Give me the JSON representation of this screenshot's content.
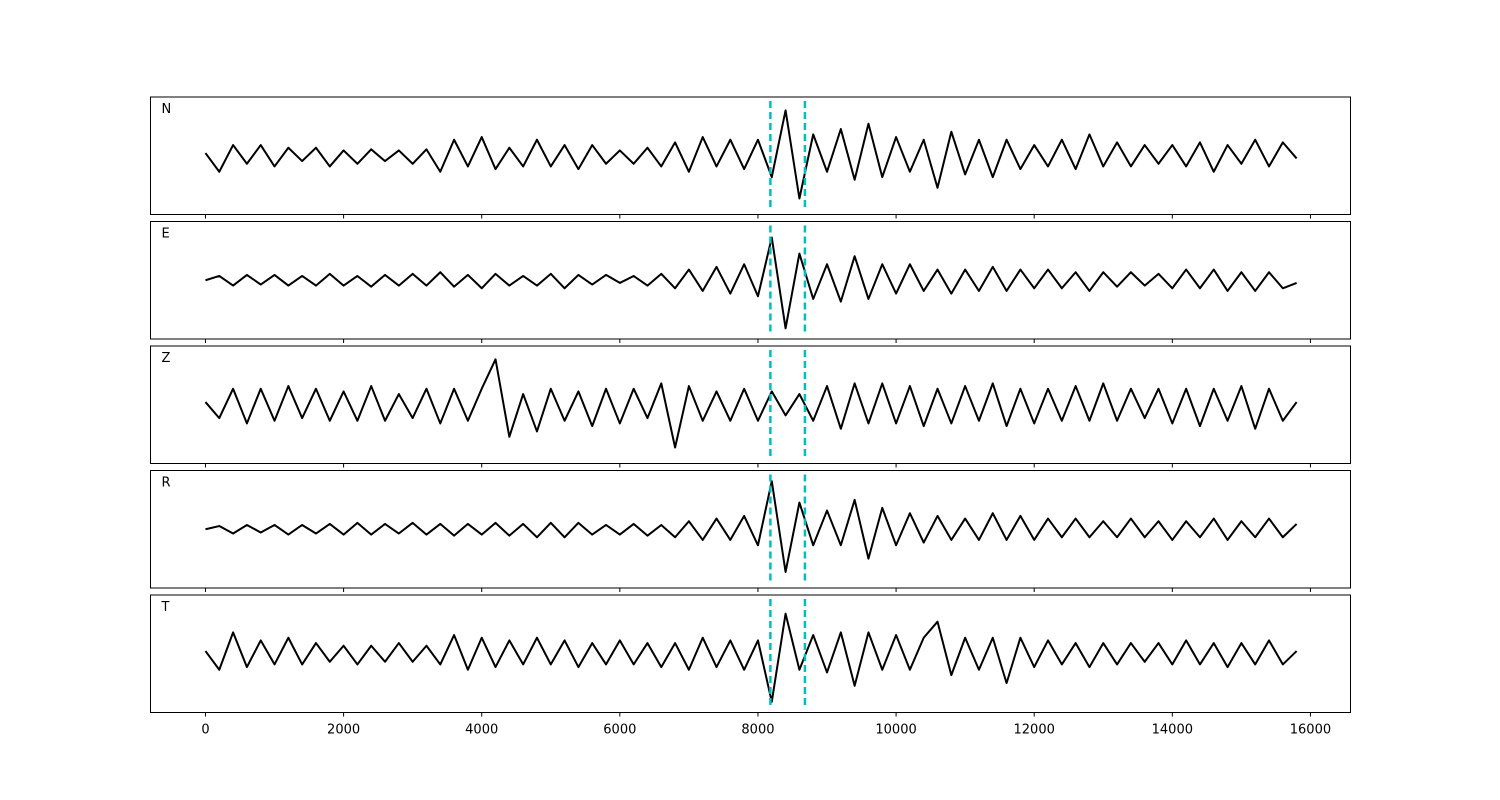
{
  "chart_data": {
    "type": "line",
    "subplots": true,
    "x": [
      0,
      200,
      400,
      600,
      800,
      1000,
      1200,
      1400,
      1600,
      1800,
      2000,
      2200,
      2400,
      2600,
      2800,
      3000,
      3200,
      3400,
      3600,
      3800,
      4000,
      4200,
      4400,
      4600,
      4800,
      5000,
      5200,
      5400,
      5600,
      5800,
      6000,
      6200,
      6400,
      6600,
      6800,
      7000,
      7200,
      7400,
      7600,
      7800,
      8000,
      8200,
      8400,
      8600,
      8800,
      9000,
      9200,
      9400,
      9600,
      9800,
      10000,
      10200,
      10400,
      10600,
      10800,
      11000,
      11200,
      11400,
      11600,
      11800,
      12000,
      12200,
      12400,
      12600,
      12800,
      13000,
      13200,
      13400,
      13600,
      13800,
      14000,
      14200,
      14400,
      14600,
      14800,
      15000,
      15200,
      15400,
      15600,
      15800
    ],
    "series": [
      {
        "name": "N",
        "color": "#000000",
        "values": [
          0.05,
          -0.3,
          0.2,
          -0.15,
          0.2,
          -0.2,
          0.15,
          -0.1,
          0.15,
          -0.2,
          0.1,
          -0.15,
          0.12,
          -0.1,
          0.1,
          -0.15,
          0.12,
          -0.3,
          0.3,
          -0.2,
          0.35,
          -0.25,
          0.15,
          -0.2,
          0.3,
          -0.2,
          0.2,
          -0.25,
          0.2,
          -0.15,
          0.1,
          -0.15,
          0.15,
          -0.2,
          0.25,
          -0.3,
          0.35,
          -0.2,
          0.3,
          -0.25,
          0.3,
          -0.4,
          0.85,
          -0.8,
          0.4,
          -0.3,
          0.5,
          -0.45,
          0.6,
          -0.4,
          0.35,
          -0.3,
          0.3,
          -0.6,
          0.45,
          -0.35,
          0.3,
          -0.4,
          0.3,
          -0.25,
          0.2,
          -0.2,
          0.3,
          -0.25,
          0.4,
          -0.2,
          0.25,
          -0.2,
          0.2,
          -0.15,
          0.2,
          -0.2,
          0.25,
          -0.3,
          0.2,
          -0.15,
          0.3,
          -0.2,
          0.25,
          -0.05
        ]
      },
      {
        "name": "E",
        "color": "#000000",
        "values": [
          0,
          0.08,
          -0.1,
          0.1,
          -0.08,
          0.1,
          -0.1,
          0.08,
          -0.1,
          0.12,
          -0.1,
          0.08,
          -0.12,
          0.1,
          -0.1,
          0.12,
          -0.1,
          0.15,
          -0.12,
          0.1,
          -0.15,
          0.12,
          -0.1,
          0.08,
          -0.1,
          0.12,
          -0.15,
          0.1,
          -0.08,
          0.1,
          -0.05,
          0.08,
          -0.1,
          0.12,
          -0.15,
          0.2,
          -0.2,
          0.25,
          -0.25,
          0.3,
          -0.3,
          0.8,
          -0.9,
          0.5,
          -0.35,
          0.3,
          -0.4,
          0.45,
          -0.35,
          0.3,
          -0.25,
          0.3,
          -0.2,
          0.2,
          -0.25,
          0.2,
          -0.2,
          0.25,
          -0.2,
          0.2,
          -0.15,
          0.2,
          -0.15,
          0.15,
          -0.2,
          0.15,
          -0.12,
          0.15,
          -0.1,
          0.12,
          -0.15,
          0.2,
          -0.15,
          0.2,
          -0.2,
          0.15,
          -0.2,
          0.15,
          -0.15,
          -0.05
        ]
      },
      {
        "name": "Z",
        "color": "#000000",
        "values": [
          0.05,
          -0.25,
          0.3,
          -0.35,
          0.3,
          -0.3,
          0.35,
          -0.25,
          0.3,
          -0.3,
          0.25,
          -0.3,
          0.35,
          -0.3,
          0.2,
          -0.25,
          0.3,
          -0.35,
          0.3,
          -0.3,
          0.3,
          0.85,
          -0.6,
          0.2,
          -0.5,
          0.3,
          -0.3,
          0.25,
          -0.4,
          0.3,
          -0.35,
          0.3,
          -0.25,
          0.4,
          -0.8,
          0.35,
          -0.3,
          0.25,
          -0.3,
          0.3,
          -0.3,
          0.25,
          -0.2,
          0.2,
          -0.3,
          0.35,
          -0.45,
          0.4,
          -0.35,
          0.4,
          -0.35,
          0.35,
          -0.4,
          0.3,
          -0.35,
          0.35,
          -0.3,
          0.4,
          -0.4,
          0.3,
          -0.35,
          0.3,
          -0.3,
          0.35,
          -0.3,
          0.4,
          -0.3,
          0.3,
          -0.25,
          0.3,
          -0.35,
          0.3,
          -0.4,
          0.3,
          -0.3,
          0.35,
          -0.45,
          0.3,
          -0.3,
          0.05
        ]
      },
      {
        "name": "R",
        "color": "#000000",
        "values": [
          0,
          0.06,
          -0.08,
          0.08,
          -0.06,
          0.08,
          -0.1,
          0.08,
          -0.08,
          0.1,
          -0.1,
          0.12,
          -0.1,
          0.1,
          -0.08,
          0.12,
          -0.1,
          0.1,
          -0.12,
          0.1,
          -0.1,
          0.12,
          -0.12,
          0.1,
          -0.15,
          0.12,
          -0.15,
          0.12,
          -0.1,
          0.08,
          -0.1,
          0.1,
          -0.12,
          0.08,
          -0.15,
          0.15,
          -0.2,
          0.2,
          -0.2,
          0.25,
          -0.3,
          0.9,
          -0.8,
          0.5,
          -0.3,
          0.35,
          -0.3,
          0.55,
          -0.55,
          0.4,
          -0.3,
          0.3,
          -0.25,
          0.25,
          -0.2,
          0.2,
          -0.2,
          0.3,
          -0.2,
          0.25,
          -0.2,
          0.2,
          -0.15,
          0.2,
          -0.15,
          0.15,
          -0.15,
          0.2,
          -0.15,
          0.15,
          -0.2,
          0.15,
          -0.15,
          0.2,
          -0.2,
          0.15,
          -0.15,
          0.2,
          -0.15,
          0.1
        ]
      },
      {
        "name": "T",
        "color": "#000000",
        "values": [
          0.05,
          -0.3,
          0.4,
          -0.25,
          0.25,
          -0.2,
          0.3,
          -0.2,
          0.2,
          -0.15,
          0.15,
          -0.2,
          0.15,
          -0.15,
          0.2,
          -0.15,
          0.15,
          -0.2,
          0.35,
          -0.3,
          0.3,
          -0.25,
          0.25,
          -0.2,
          0.3,
          -0.2,
          0.25,
          -0.25,
          0.2,
          -0.2,
          0.25,
          -0.2,
          0.2,
          -0.25,
          0.2,
          -0.3,
          0.3,
          -0.25,
          0.25,
          -0.3,
          0.25,
          -0.9,
          0.75,
          -0.3,
          0.35,
          -0.35,
          0.4,
          -0.6,
          0.4,
          -0.3,
          0.35,
          -0.3,
          0.3,
          0.6,
          -0.4,
          0.3,
          -0.3,
          0.3,
          -0.55,
          0.3,
          -0.25,
          0.25,
          -0.2,
          0.2,
          -0.25,
          0.2,
          -0.2,
          0.2,
          -0.15,
          0.2,
          -0.2,
          0.25,
          -0.2,
          0.2,
          -0.25,
          0.2,
          -0.2,
          0.25,
          -0.2,
          0.05
        ]
      }
    ],
    "vlines": [
      8180,
      8680
    ],
    "vline_color": "#00bfbf",
    "vline_style": "dashed",
    "xlim": [
      -796,
      16580
    ],
    "xticks": [
      0,
      2000,
      4000,
      6000,
      8000,
      10000,
      12000,
      14000,
      16000
    ],
    "ylim": [
      -1.1,
      1.1
    ]
  }
}
